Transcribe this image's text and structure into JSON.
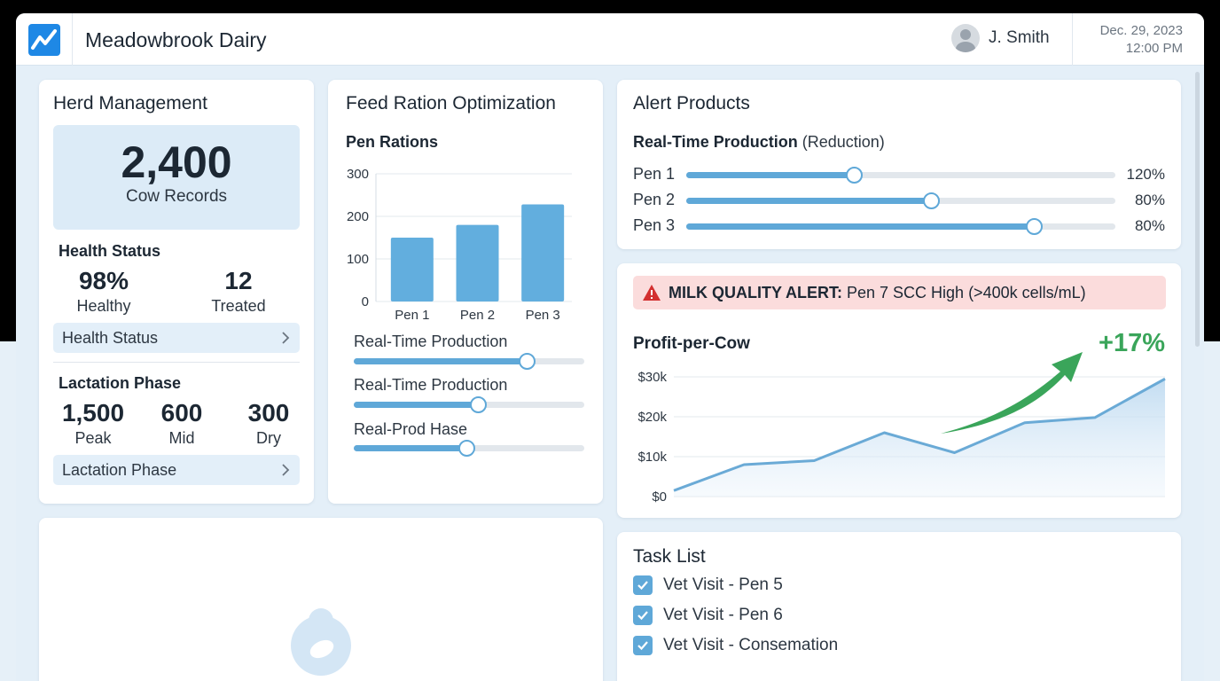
{
  "header": {
    "app_title": "Meadowbrook Dairy",
    "user_name": "J. Smith",
    "date": "Dec. 29, 2023",
    "time": "12:00 PM"
  },
  "herd": {
    "title": "Herd Management",
    "total": "2,400",
    "total_label": "Cow Records",
    "health_title": "Health Status",
    "healthy_value": "98%",
    "healthy_label": "Healthy",
    "treated_value": "12",
    "treated_label": "Treated",
    "health_link": "Health Status",
    "lactation_title": "Lactation Phase",
    "peak_value": "1,500",
    "peak_label": "Peak",
    "mid_value": "600",
    "mid_label": "Mid",
    "dry_value": "300",
    "dry_label": "Dry",
    "lactation_link": "Lactation Phase"
  },
  "feed": {
    "title": "Feed Ration Optimization",
    "subtitle": "Pen Rations",
    "sliders": [
      {
        "label": "Real-Time Production",
        "value": 0.75
      },
      {
        "label": "Real-Time Production",
        "value": 0.54
      },
      {
        "label": "Real-Prod Hase",
        "value": 0.49
      }
    ]
  },
  "chart_data": [
    {
      "type": "bar",
      "categories": [
        "Pen 1",
        "Pen 2",
        "Pen 3"
      ],
      "values": [
        150,
        180,
        228
      ],
      "yticks": [
        "0",
        "100",
        "200",
        "300"
      ],
      "ylim": [
        0,
        300
      ],
      "grid": true,
      "color": "#62aede"
    },
    {
      "type": "line",
      "title": "Profit-per-Cow",
      "x": [
        0,
        1,
        2,
        3,
        4,
        5,
        6,
        7
      ],
      "values": [
        1.5,
        8,
        9,
        16,
        11,
        18.5,
        19.8,
        29.5
      ],
      "yticks": [
        "$0",
        "$10k",
        "$20k",
        "$30k"
      ],
      "ylim": [
        0,
        30
      ],
      "annotation": "+17%",
      "grid": true,
      "color": "#6aaad6"
    }
  ],
  "alert_products": {
    "title": "Alert Products",
    "subtitle_bold": "Real-Time Production",
    "subtitle_rest": " (Reduction)",
    "pens": [
      {
        "label": "Pen 1",
        "value_text": "120%",
        "level": 0.39
      },
      {
        "label": "Pen 2",
        "value_text": "80%",
        "level": 0.57
      },
      {
        "label": "Pen 3",
        "value_text": "80%",
        "level": 0.81
      }
    ]
  },
  "alert": {
    "bold": "MILK QUALITY ALERT:",
    "text": " Pen 7 SCC High (>400k cells/mL)"
  },
  "profit": {
    "title": "Profit-per-Cow",
    "change": "+17%"
  },
  "tasks": {
    "title": "Task List",
    "items": [
      {
        "label": "Vet Visit - Pen 5",
        "checked": true
      },
      {
        "label": "Vet Visit - Pen 6",
        "checked": true
      },
      {
        "label": "Vet Visit - Consemation",
        "checked": true
      }
    ]
  },
  "colors": {
    "accent": "#5fa8d8",
    "alert_bg": "#fbdcdc",
    "positive": "#3aa55a",
    "logo": "#1e88e5"
  }
}
